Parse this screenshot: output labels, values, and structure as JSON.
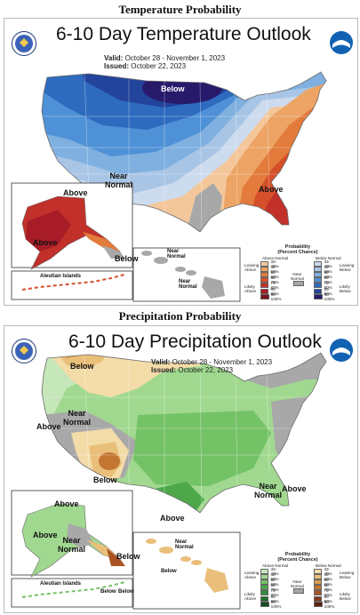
{
  "temperature": {
    "section_title": "Temperature Probability",
    "title": "6-10 Day Temperature Outlook",
    "valid_label": "Valid:",
    "valid_value": "October 28 - November 1, 2023",
    "issued_label": "Issued:",
    "issued_value": "October 22, 2023",
    "labels": {
      "below_north": "Below",
      "near_normal": "Near\nNormal",
      "above_se": "Above",
      "ak_above_n": "Above",
      "ak_above_s": "Above",
      "ak_below": "Below",
      "aleutian": "Aleutian Islands",
      "hi_near1": "Near\nNormal",
      "hi_near2": "Near\nNormal"
    },
    "legend": {
      "title": "Probability\n(Percent Chance)",
      "above_header": "Above Normal",
      "below_header": "Below Normal",
      "leaning_above": "Leaning\nAbove",
      "likely_above": "Likely\nAbove",
      "leaning_below": "Leaning\nBelow",
      "likely_below": "Likely\nBelow",
      "near_normal": "Near\nNormal",
      "ranges": [
        "33-40%",
        "40-50%",
        "50-60%",
        "60-70%",
        "70-80%",
        "80-90%",
        "90-100%"
      ],
      "above_colors": [
        "#f4c79b",
        "#eda464",
        "#e27b3b",
        "#d5502a",
        "#c2302a",
        "#a71c26",
        "#7c1020"
      ],
      "below_colors": [
        "#cddbee",
        "#a8c5e6",
        "#7fb0e0",
        "#4f91d6",
        "#2e6bbf",
        "#23449b",
        "#271a6b"
      ]
    }
  },
  "precipitation": {
    "section_title": "Precipitation Probability",
    "title": "6-10 Day Precipitation Outlook",
    "valid_label": "Valid:",
    "valid_value": "October 28 - November 1, 2023",
    "issued_label": "Issued:",
    "issued_value": "October 22, 2023",
    "labels": {
      "below_nw": "Below",
      "above_w": "Above",
      "near_normal_w": "Near\nNormal",
      "below_sw": "Below",
      "above_tx": "Above",
      "near_normal_e": "Near\nNormal",
      "above_e": "Above",
      "ak_above_n": "Above",
      "ak_above_s": "Above",
      "ak_near": "Near\nNormal",
      "ak_below": "Below",
      "aleutian": "Aleutian Islands",
      "aleutian_below": "Below",
      "aleutian_below2": "Below",
      "hi_near": "Near\nNormal",
      "hi_below": "Below"
    },
    "legend": {
      "title": "Probability\n(Percent Chance)",
      "above_header": "Above Normal",
      "below_header": "Below Normal",
      "leaning_above": "Leaning\nAbove",
      "likely_above": "Likely\nAbove",
      "leaning_below": "Leaning\nBelow",
      "likely_below": "Likely\nBelow",
      "near_normal": "Near\nNormal",
      "ranges": [
        "33-40%",
        "40-50%",
        "50-60%",
        "60-70%",
        "70-80%",
        "80-90%",
        "90-100%"
      ],
      "above_colors": [
        "#c6e7b9",
        "#a0d88f",
        "#74c266",
        "#4ea84a",
        "#2f8f3a",
        "#1f6e2c",
        "#124a1c"
      ],
      "below_colors": [
        "#f3dca8",
        "#e9bf7a",
        "#d99a4e",
        "#c37532",
        "#a95424",
        "#83371a",
        "#5c2010"
      ]
    }
  },
  "colors": {
    "near_normal": "#a6a6a6",
    "outline": "#6a6a6a"
  },
  "icons": {
    "left_logo": "commerce-seal-icon",
    "right_logo": "noaa-logo-icon"
  }
}
